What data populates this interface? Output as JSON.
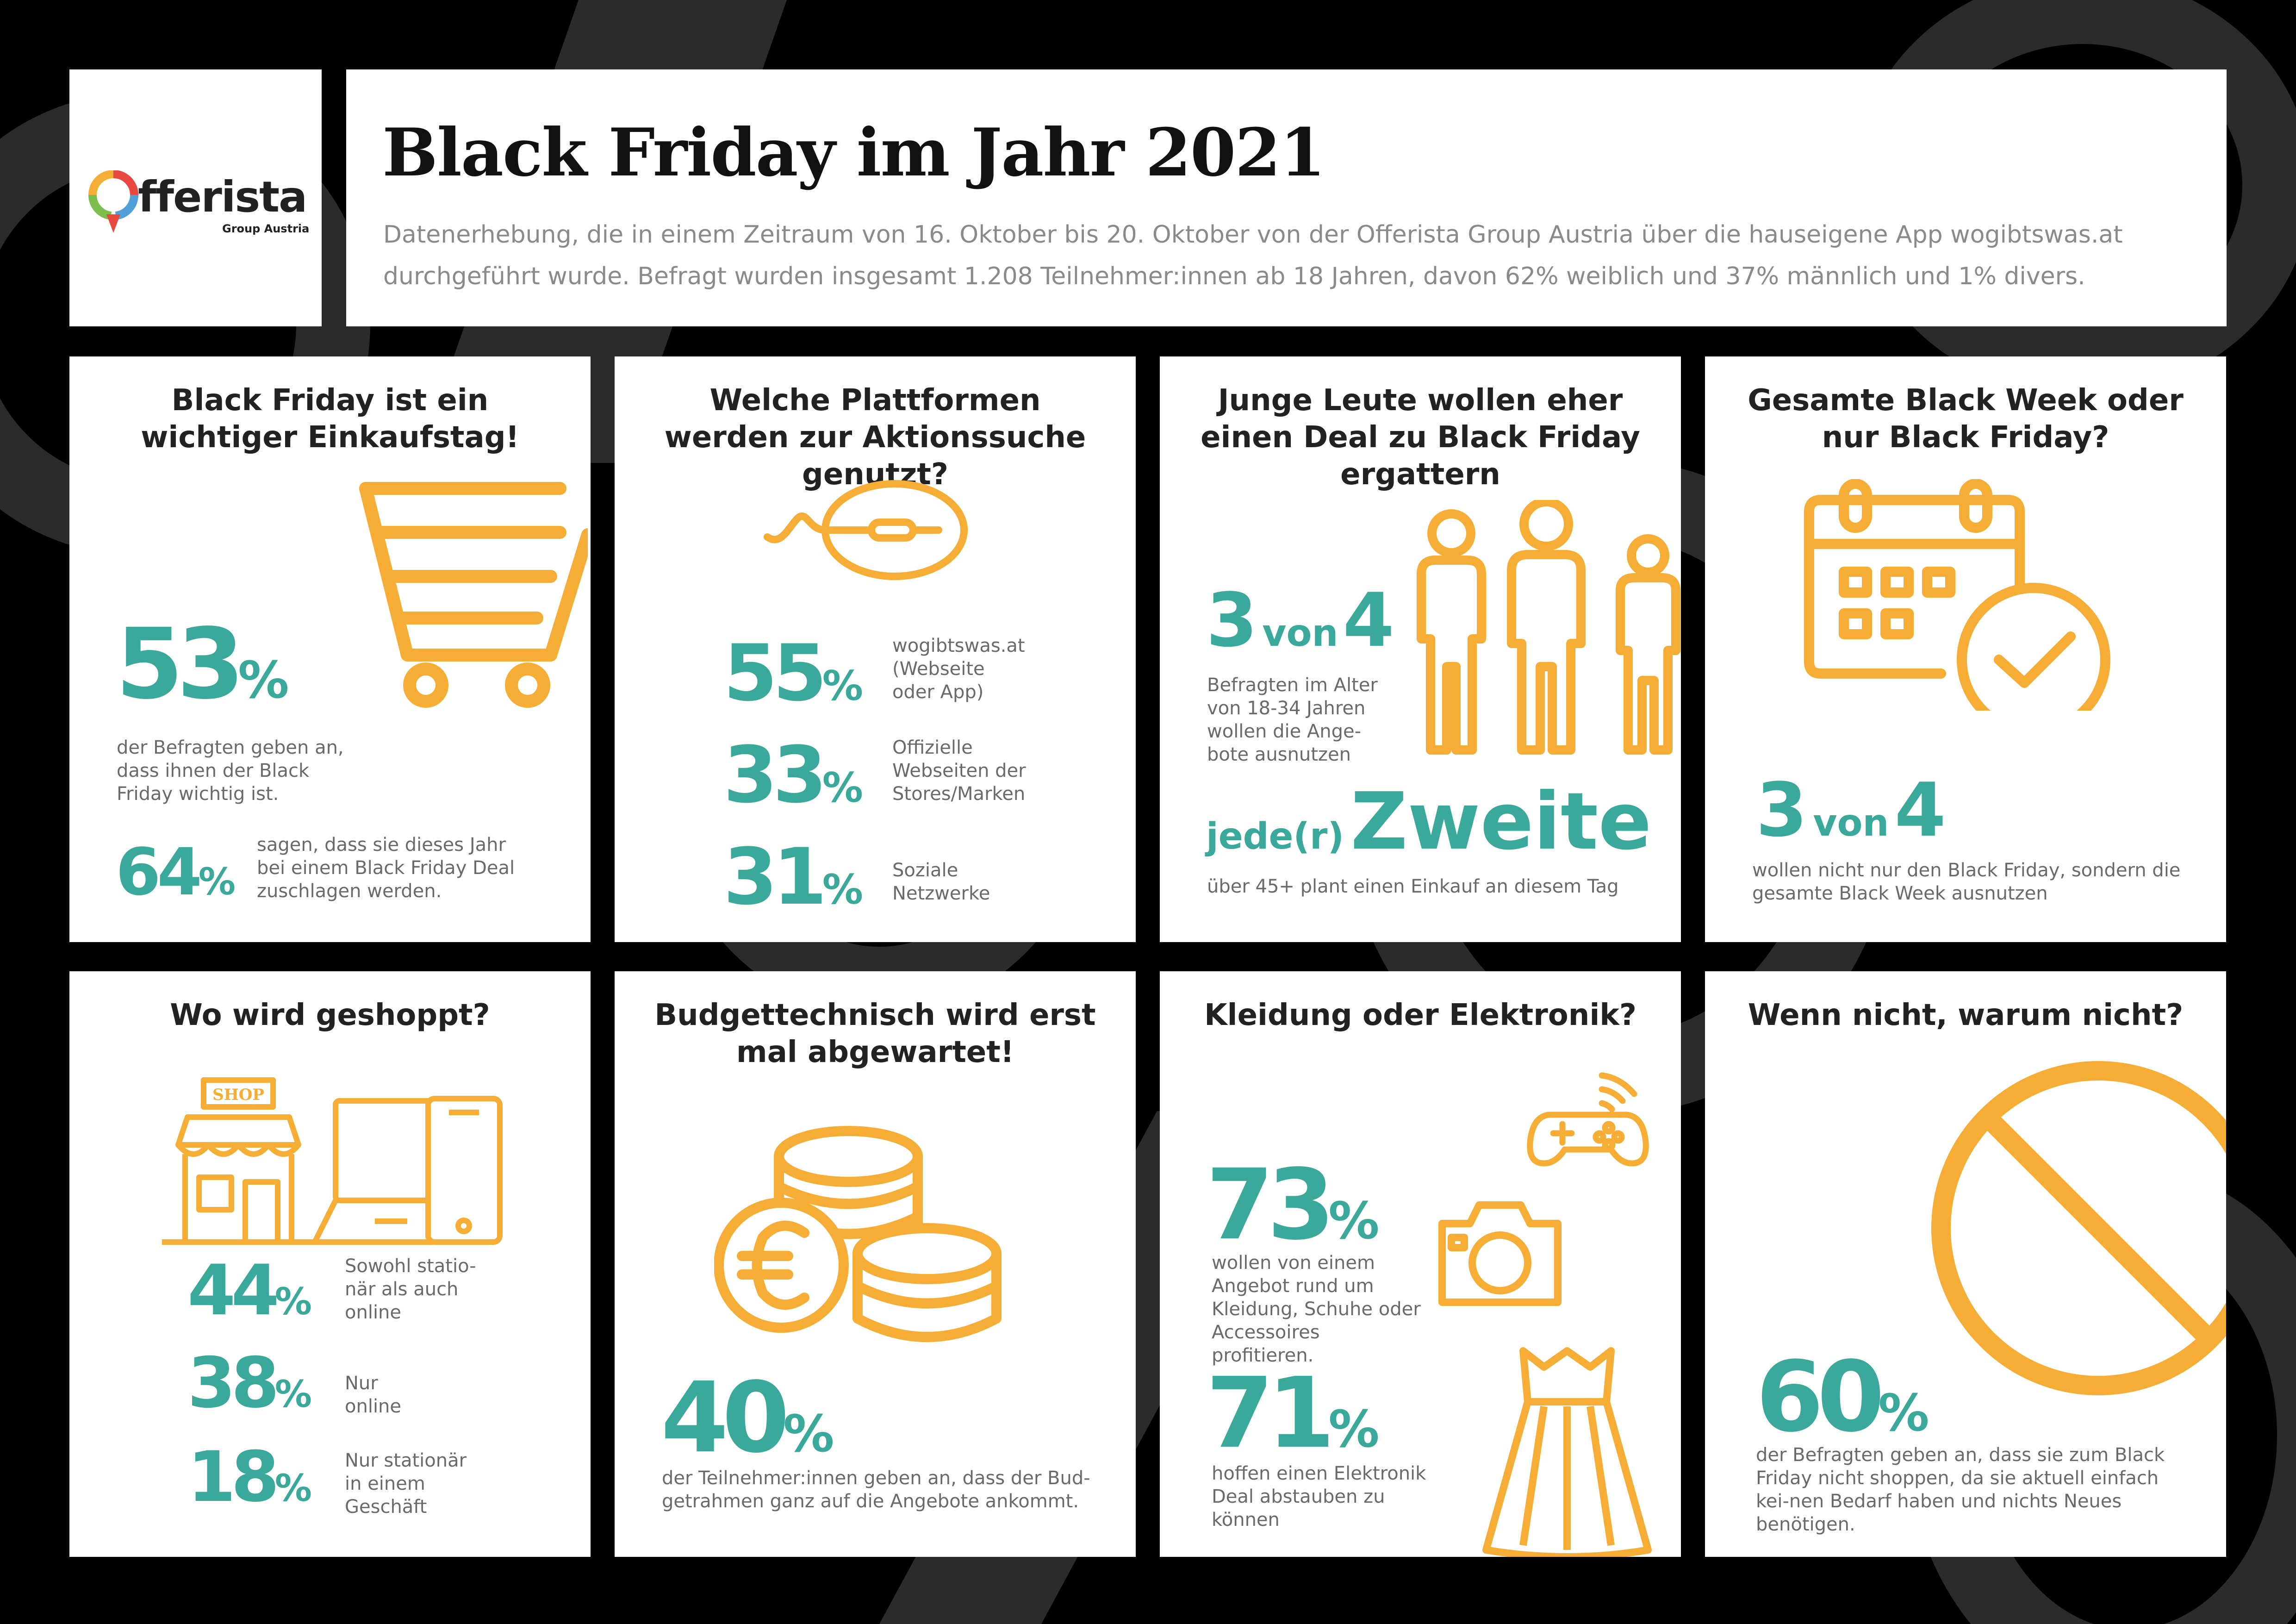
{
  "header": {
    "logo_word": "fferista",
    "logo_sub": "Group Austria",
    "title": "Black Friday im Jahr 2021",
    "subtitle_line1": "Datenerhebung, die in einem Zeitraum von 16. Oktober bis 20. Oktober von der Offerista Group Austria über die hauseigene App wogibtswas.at",
    "subtitle_line2": "durchgeführt wurde. Befragt wurden insgesamt 1.208 Teilnehmer:innen ab 18 Jahren, davon 62% weiblich und 37% männlich und 1% divers."
  },
  "card1": {
    "title": "Black Friday ist ein wichtiger Einkaufstag!",
    "stat1_value": "53",
    "stat1_unit": "%",
    "stat1_desc": "der Befragten geben an, dass ihnen der Black Friday wichtig ist.",
    "stat2_value": "64",
    "stat2_unit": "%",
    "stat2_desc": "sagen, dass sie dieses Jahr bei einem Black Friday Deal zuschlagen werden."
  },
  "card2": {
    "title": "Welche Plattformen werden zur Aktionssuche genutzt?",
    "items": [
      {
        "value": "55",
        "unit": "%",
        "label": "wogibtswas.at (Webseite oder App)"
      },
      {
        "value": "33",
        "unit": "%",
        "label": "Offizielle Webseiten der Stores/Marken"
      },
      {
        "value": "31",
        "unit": "%",
        "label": "Soziale Netzwerke"
      }
    ]
  },
  "card3": {
    "title": "Junge Leute wollen eher einen Deal zu Black Friday ergattern",
    "stat1_a": "3",
    "stat1_von": "von",
    "stat1_b": "4",
    "stat1_desc": "Befragten im Alter von 18-34 Jahren wollen die Ange-bote ausnutzen",
    "stat2_prefix": "jede(r)",
    "stat2_word": "Zweite",
    "stat2_desc": "über 45+ plant einen Einkauf an diesem Tag"
  },
  "card4": {
    "title": "Gesamte Black Week oder nur Black Friday?",
    "stat_a": "3",
    "stat_von": "von",
    "stat_b": "4",
    "stat_desc": "wollen nicht nur den Black Friday, sondern die gesamte Black Week ausnutzen"
  },
  "card5": {
    "title": "Wo wird geshoppt?",
    "shop_sign": "SHOP",
    "items": [
      {
        "value": "44",
        "unit": "%",
        "label": "Sowohl statio-när als auch online"
      },
      {
        "value": "38",
        "unit": "%",
        "label": "Nur online"
      },
      {
        "value": "18",
        "unit": "%",
        "label": "Nur stationär in einem Geschäft"
      }
    ]
  },
  "card6": {
    "title": "Budgettechnisch wird erst mal abgewartet!",
    "stat_value": "40",
    "stat_unit": "%",
    "stat_desc": "der Teilnehmer:innen geben an, dass der Bud-getrahmen ganz auf die Angebote ankommt."
  },
  "card7": {
    "title": "Kleidung oder Elektronik?",
    "stat1_value": "73",
    "stat1_unit": "%",
    "stat1_desc": "wollen von einem Angebot rund um Kleidung, Schuhe oder Accessoires profitieren.",
    "stat2_value": "71",
    "stat2_unit": "%",
    "stat2_desc": "hoffen einen Elektronik Deal abstauben zu können"
  },
  "card8": {
    "title": "Wenn nicht, warum nicht?",
    "stat_value": "60",
    "stat_unit": "%",
    "stat_desc": "der Befragten geben an, dass sie zum Black Friday nicht shoppen, da sie aktuell einfach kei-nen Bedarf haben und nichts Neues benötigen."
  },
  "colors": {
    "accent_yellow": "#f5ad35",
    "teal": "#3aa89a",
    "background": "#000000",
    "decor": "#2b2b2b"
  }
}
